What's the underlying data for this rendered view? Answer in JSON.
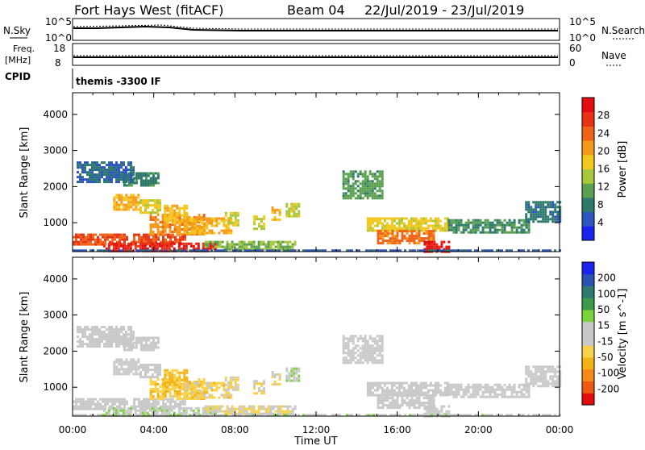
{
  "header": {
    "station": "Fort Hays West (fitACF)",
    "beam": "Beam 04",
    "dates": "22/Jul/2019 - 23/Jul/2019"
  },
  "top_panels": {
    "nsky_label": "N.Sky",
    "nsearch_label": "N.Search",
    "left_ticks_top": [
      "10^5",
      "10^0"
    ],
    "right_ticks_top": [
      "10^5",
      "10^0"
    ],
    "freq_label_1": "Freq.",
    "freq_label_2": "[MHz]",
    "nave_label": "Nave",
    "left_ticks_freq": [
      "18",
      "8"
    ],
    "right_ticks_freq": [
      "60",
      "0"
    ],
    "cpid_label": "CPID",
    "cpid_value": "themis -3300 IF"
  },
  "colors": {
    "power_scale": [
      "#1a22ee",
      "#2d55c0",
      "#2e7a6a",
      "#5aa050",
      "#a7c83a",
      "#f2c81e",
      "#f59a1a",
      "#ef6418",
      "#e83214",
      "#e30d10"
    ],
    "velocity_scale": [
      "#e30d10",
      "#ef5a12",
      "#f58a18",
      "#f3b215",
      "#f7d24a",
      "#c9c9c9",
      "#c9c9c9",
      "#7bd43c",
      "#3d9a4b",
      "#2f7a70",
      "#2a52b2",
      "#1a22ee"
    ]
  },
  "chart_data": [
    {
      "type": "heatmap",
      "name": "power",
      "ylabel": "Slant Range [km]",
      "y_ticks": [
        "1000",
        "2000",
        "3000",
        "4000"
      ],
      "ylim": [
        200,
        4600
      ],
      "colorbar_label": "Power [dB]",
      "colorbar_ticks": [
        "4",
        "8",
        "12",
        "16",
        "20",
        "24",
        "28"
      ],
      "zlim": [
        0,
        30
      ],
      "x_ticks": [
        "00:00",
        "04:00",
        "08:00",
        "12:00",
        "16:00",
        "20:00",
        "00:00"
      ],
      "xlim_hours": [
        0,
        24
      ],
      "patches": [
        {
          "t0": 0.0,
          "t1": 5.5,
          "r0": 400,
          "r1": 700,
          "v": 24
        },
        {
          "t0": 1.5,
          "t1": 7.0,
          "r0": 200,
          "r1": 450,
          "v": 27
        },
        {
          "t0": 3.8,
          "t1": 6.5,
          "r0": 700,
          "r1": 1250,
          "v": 20
        },
        {
          "t0": 4.5,
          "t1": 5.6,
          "r0": 1000,
          "r1": 1500,
          "v": 17
        },
        {
          "t0": 5.5,
          "t1": 7.8,
          "r0": 700,
          "r1": 1150,
          "v": 18
        },
        {
          "t0": 2.0,
          "t1": 3.3,
          "r0": 1350,
          "r1": 1800,
          "v": 18
        },
        {
          "t0": 3.3,
          "t1": 4.3,
          "r0": 1300,
          "r1": 1650,
          "v": 15
        },
        {
          "t0": 2.5,
          "t1": 4.2,
          "r0": 2050,
          "r1": 2400,
          "v": 8
        },
        {
          "t0": 7.5,
          "t1": 8.2,
          "r0": 900,
          "r1": 1300,
          "v": 15
        },
        {
          "t0": 8.9,
          "t1": 9.4,
          "r0": 850,
          "r1": 1200,
          "v": 15
        },
        {
          "t0": 9.8,
          "t1": 10.2,
          "r0": 1100,
          "r1": 1450,
          "v": 18
        },
        {
          "t0": 10.5,
          "t1": 11.2,
          "r0": 1200,
          "r1": 1550,
          "v": 14
        },
        {
          "t0": 6.5,
          "t1": 11.0,
          "r0": 250,
          "r1": 500,
          "v": 12
        },
        {
          "t0": 14.5,
          "t1": 18.5,
          "r0": 750,
          "r1": 1150,
          "v": 16
        },
        {
          "t0": 15.0,
          "t1": 17.8,
          "r0": 450,
          "r1": 800,
          "v": 22
        },
        {
          "t0": 17.3,
          "t1": 18.5,
          "r0": 200,
          "r1": 500,
          "v": 28
        },
        {
          "t0": 13.3,
          "t1": 15.3,
          "r0": 1650,
          "r1": 2450,
          "v": 10
        },
        {
          "t0": 18.5,
          "t1": 22.5,
          "r0": 700,
          "r1": 1100,
          "v": 9
        },
        {
          "t0": 22.3,
          "t1": 24.0,
          "r0": 1000,
          "r1": 1600,
          "v": 7
        },
        {
          "t0": 0.2,
          "t1": 3.0,
          "r0": 2100,
          "r1": 2700,
          "v": 6
        },
        {
          "t0": 0.0,
          "t1": 24.0,
          "r0": 150,
          "r1": 260,
          "v": 5
        }
      ]
    },
    {
      "type": "heatmap",
      "name": "velocity",
      "ylabel": "Slant Range [km]",
      "y_ticks": [
        "1000",
        "2000",
        "3000",
        "4000"
      ],
      "ylim": [
        200,
        4600
      ],
      "colorbar_label": "Velocity [m s^-1]",
      "colorbar_ticks": [
        "-200",
        "-100",
        "-50",
        "-15",
        "15",
        "50",
        "100",
        "200"
      ],
      "zlim": [
        -250,
        250
      ],
      "x_ticks": [
        "00:00",
        "04:00",
        "08:00",
        "12:00",
        "16:00",
        "20:00",
        "00:00"
      ],
      "xlabel": "Time UT",
      "xlim_hours": [
        0,
        24
      ],
      "patches": [
        {
          "t0": 0.0,
          "t1": 5.5,
          "r0": 400,
          "r1": 700,
          "v": 0
        },
        {
          "t0": 1.5,
          "t1": 7.0,
          "r0": 200,
          "r1": 450,
          "v": 25
        },
        {
          "t0": 3.8,
          "t1": 6.5,
          "r0": 700,
          "r1": 1250,
          "v": -70
        },
        {
          "t0": 4.5,
          "t1": 5.6,
          "r0": 1000,
          "r1": 1500,
          "v": -90
        },
        {
          "t0": 5.5,
          "t1": 7.8,
          "r0": 700,
          "r1": 1150,
          "v": -60
        },
        {
          "t0": 2.0,
          "t1": 3.3,
          "r0": 1350,
          "r1": 1800,
          "v": 0
        },
        {
          "t0": 3.3,
          "t1": 4.3,
          "r0": 1300,
          "r1": 1650,
          "v": 0
        },
        {
          "t0": 2.5,
          "t1": 4.2,
          "r0": 2050,
          "r1": 2400,
          "v": 0
        },
        {
          "t0": 7.5,
          "t1": 8.2,
          "r0": 900,
          "r1": 1300,
          "v": -40
        },
        {
          "t0": 8.9,
          "t1": 9.4,
          "r0": 850,
          "r1": 1200,
          "v": -40
        },
        {
          "t0": 9.8,
          "t1": 10.2,
          "r0": 1100,
          "r1": 1450,
          "v": -40
        },
        {
          "t0": 10.5,
          "t1": 11.2,
          "r0": 1200,
          "r1": 1550,
          "v": 30
        },
        {
          "t0": 6.5,
          "t1": 11.0,
          "r0": 250,
          "r1": 500,
          "v": -40
        },
        {
          "t0": 14.5,
          "t1": 18.5,
          "r0": 750,
          "r1": 1150,
          "v": 0
        },
        {
          "t0": 15.0,
          "t1": 17.8,
          "r0": 450,
          "r1": 800,
          "v": 0
        },
        {
          "t0": 17.3,
          "t1": 18.5,
          "r0": 200,
          "r1": 500,
          "v": 0
        },
        {
          "t0": 13.3,
          "t1": 15.3,
          "r0": 1650,
          "r1": 2450,
          "v": 0
        },
        {
          "t0": 18.5,
          "t1": 22.5,
          "r0": 700,
          "r1": 1100,
          "v": 0
        },
        {
          "t0": 22.3,
          "t1": 24.0,
          "r0": 1000,
          "r1": 1600,
          "v": 0
        },
        {
          "t0": 0.2,
          "t1": 3.0,
          "r0": 2100,
          "r1": 2700,
          "v": 0
        },
        {
          "t0": 0.0,
          "t1": 24.0,
          "r0": 150,
          "r1": 260,
          "v": 20
        }
      ]
    }
  ]
}
